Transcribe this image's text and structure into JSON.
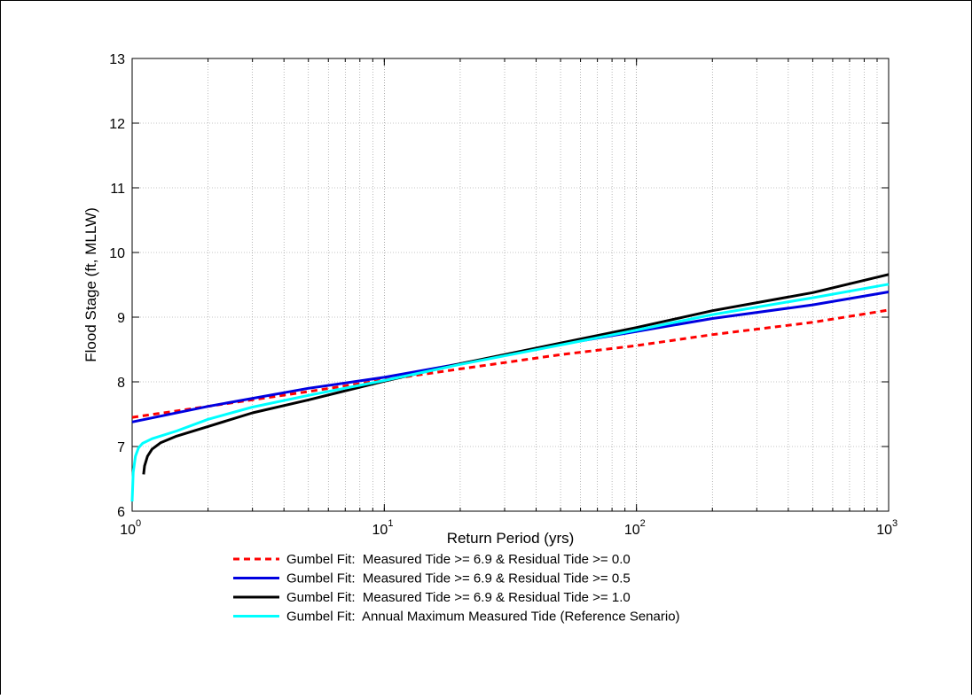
{
  "chart_data": {
    "type": "line",
    "title": "",
    "xlabel": "Return Period (yrs)",
    "ylabel": "Flood Stage (ft, MLLW)",
    "xscale": "log",
    "xlim": [
      1,
      1000
    ],
    "ylim": [
      6,
      13
    ],
    "x_tick_labels": [
      {
        "base": "10",
        "exp": "0",
        "value": 1
      },
      {
        "base": "10",
        "exp": "1",
        "value": 10
      },
      {
        "base": "10",
        "exp": "2",
        "value": 100
      },
      {
        "base": "10",
        "exp": "3",
        "value": 1000
      }
    ],
    "y_ticks": [
      "6",
      "7",
      "8",
      "9",
      "10",
      "11",
      "12",
      "13"
    ],
    "grid": true,
    "legend_position": "below",
    "series": [
      {
        "name": "Gumbel Fit:  Measured Tide >= 6.9 & Residual Tide >= 0.0",
        "color": "#ff0000",
        "style": "dashed",
        "x": [
          1.0,
          2,
          5,
          10,
          20,
          50,
          100,
          200,
          500,
          1000
        ],
        "y": [
          7.45,
          7.62,
          7.85,
          8.03,
          8.2,
          8.42,
          8.56,
          8.73,
          8.92,
          9.11
        ]
      },
      {
        "name": "Gumbel Fit:  Measured Tide >= 6.9 & Residual Tide >= 0.5",
        "color": "#0000e0",
        "style": "solid",
        "x": [
          1.0,
          2,
          5,
          10,
          20,
          50,
          100,
          200,
          500,
          1000
        ],
        "y": [
          7.38,
          7.62,
          7.9,
          8.07,
          8.28,
          8.58,
          8.78,
          8.98,
          9.19,
          9.39
        ]
      },
      {
        "name": "Gumbel Fit:  Measured Tide >= 6.9 & Residual Tide >= 1.0",
        "color": "#000000",
        "style": "solid",
        "x": [
          1.11,
          1.12,
          1.15,
          1.2,
          1.3,
          1.5,
          2,
          3,
          5,
          10,
          20,
          50,
          100,
          200,
          500,
          1000
        ],
        "y": [
          6.57,
          6.7,
          6.85,
          6.96,
          7.06,
          7.16,
          7.31,
          7.52,
          7.72,
          8.01,
          8.28,
          8.6,
          8.84,
          9.1,
          9.38,
          9.66
        ]
      },
      {
        "name": "Gumbel Fit:  Annual Maximum Measured Tide (Reference Senario)",
        "color": "#00ffff",
        "style": "solid",
        "x": [
          1.0,
          1.01,
          1.03,
          1.06,
          1.1,
          1.2,
          1.5,
          2,
          3,
          5,
          10,
          20,
          50,
          100,
          200,
          500,
          1000
        ],
        "y": [
          6.15,
          6.6,
          6.85,
          6.98,
          7.05,
          7.12,
          7.24,
          7.42,
          7.61,
          7.79,
          8.02,
          8.27,
          8.57,
          8.8,
          9.04,
          9.3,
          9.51
        ]
      }
    ]
  }
}
